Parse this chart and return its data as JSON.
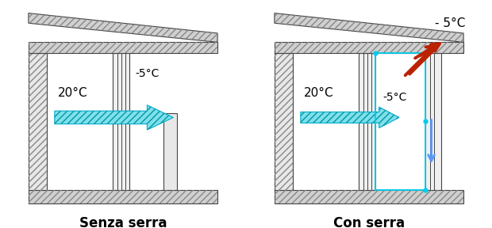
{
  "fig_width": 6.2,
  "fig_height": 2.88,
  "dpi": 100,
  "bg_color": "#ffffff",
  "panel1_label": "Senza serra",
  "panel2_label": "Con serra",
  "temp_inside": "20°C",
  "temp_outside_left": "-5°C",
  "temp_outside_right": "- 5°C",
  "temp_label_serra": "-5°C",
  "arrow_fill": "#7fdfef",
  "arrow_edge": "#00aacc",
  "arrow_hatch_color": "#55bbcc",
  "red_color": "#bb2200",
  "blue_color": "#5599ff",
  "cyan_color": "#00ccee",
  "wall_face": "#e8e8e8",
  "wall_edge": "#444444",
  "hatch_face": "#d0d0d0",
  "floor_face": "#cccccc"
}
